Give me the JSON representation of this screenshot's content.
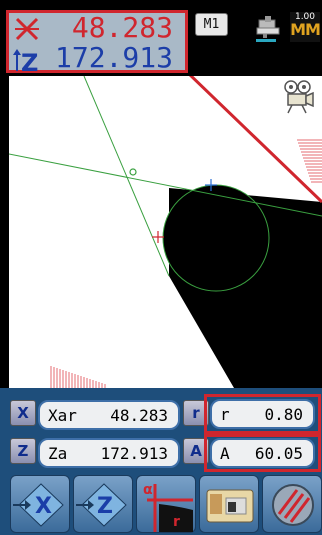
{
  "readout": {
    "x_value": "48.283",
    "z_value": "172.913"
  },
  "header": {
    "mode": "M1",
    "unit_value": "1.00",
    "unit_label": "MM"
  },
  "params": {
    "xar": {
      "label": "Xar",
      "value": "48.283"
    },
    "za": {
      "label": "Za",
      "value": "172.913"
    },
    "r": {
      "label": "r",
      "value": "0.80"
    },
    "a": {
      "label": "A",
      "value": "60.05"
    }
  },
  "buttons": {
    "x_axis": "X",
    "z_axis": "Z",
    "alpha": "α",
    "r": "r"
  },
  "icons": {
    "x_axis": "x-axis-icon",
    "z_axis": "z-axis-icon",
    "tool": "tool-icon",
    "camera": "camera-icon",
    "part": "part-thumbnail-icon",
    "settings": "hatch-icon"
  },
  "colors": {
    "accent_red": "#d0262e",
    "value_blue": "#1c3ea8",
    "panel_blue": "#1e4e7b"
  }
}
